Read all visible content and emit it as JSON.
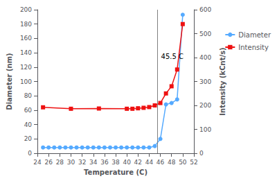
{
  "chart_data": {
    "type": "line",
    "xlabel": "Temperature (C)",
    "ylabel": "Diameter (nm)",
    "y2label": "Intensity (kCnt/s)",
    "xlim": [
      24,
      52
    ],
    "xticks": [
      24,
      26,
      28,
      30,
      32,
      34,
      36,
      38,
      40,
      42,
      44,
      46,
      48,
      50,
      52
    ],
    "ylim": [
      0,
      200
    ],
    "yticks": [
      0,
      20,
      40,
      60,
      80,
      100,
      120,
      140,
      160,
      180,
      200
    ],
    "y2lim": [
      0,
      600
    ],
    "y2ticks": [
      0,
      100,
      200,
      300,
      400,
      500,
      600
    ],
    "grid": false,
    "legend": "right",
    "series": [
      {
        "name": "Diameter",
        "color": "#55aaff",
        "marker": "circle",
        "axis": "y",
        "x": [
          25,
          26,
          27,
          28,
          29,
          30,
          31,
          32,
          33,
          34,
          35,
          36,
          37,
          38,
          39,
          40,
          41,
          42,
          43,
          44,
          45,
          46,
          47,
          48,
          49,
          50
        ],
        "values": [
          8,
          8,
          8,
          8,
          8,
          8,
          8,
          8,
          8,
          8,
          8,
          8,
          8,
          8,
          8,
          8,
          8,
          8,
          8,
          8,
          10,
          20,
          68,
          70,
          75,
          193
        ]
      },
      {
        "name": "Intensity",
        "color": "#ee1111",
        "marker": "square",
        "axis": "y2",
        "x": [
          25,
          30,
          35,
          40,
          41,
          42,
          43,
          44,
          45,
          46,
          47,
          48,
          49,
          50
        ],
        "values": [
          192,
          186,
          187,
          186,
          186,
          188,
          190,
          193,
          200,
          210,
          250,
          280,
          350,
          540
        ]
      }
    ],
    "annotations": [
      {
        "x": 45.5,
        "y": 135,
        "text": "45.5 C"
      }
    ]
  }
}
